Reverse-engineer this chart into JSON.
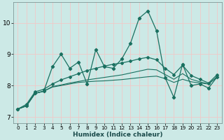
{
  "xlabel": "Humidex (Indice chaleur)",
  "xlim": [
    -0.5,
    23.5
  ],
  "ylim": [
    6.8,
    10.65
  ],
  "yticks": [
    7,
    8,
    9,
    10
  ],
  "xticks": [
    0,
    1,
    2,
    3,
    4,
    5,
    6,
    7,
    8,
    9,
    10,
    11,
    12,
    13,
    14,
    15,
    16,
    17,
    18,
    19,
    20,
    21,
    22,
    23
  ],
  "bg_color": "#cce9e6",
  "grid_color_minor": "#f0c8c8",
  "grid_color_major": "#b8d8d4",
  "line_color": "#1a7060",
  "series": [
    [
      7.25,
      7.35,
      7.75,
      7.82,
      8.6,
      9.0,
      8.55,
      8.75,
      8.05,
      9.15,
      8.6,
      8.55,
      8.85,
      9.35,
      10.15,
      10.38,
      9.75,
      8.25,
      7.62,
      8.68,
      8.0,
      8.05,
      7.92,
      8.28
    ],
    [
      7.25,
      7.35,
      7.75,
      7.82,
      7.95,
      8.0,
      8.05,
      8.1,
      8.12,
      8.14,
      8.15,
      8.17,
      8.19,
      8.22,
      8.25,
      8.28,
      8.3,
      8.22,
      8.1,
      8.2,
      8.12,
      8.08,
      8.05,
      8.28
    ],
    [
      7.25,
      7.35,
      7.75,
      7.82,
      7.97,
      8.02,
      8.08,
      8.13,
      8.18,
      8.22,
      8.26,
      8.3,
      8.34,
      8.4,
      8.46,
      8.52,
      8.5,
      8.35,
      8.2,
      8.38,
      8.2,
      8.12,
      8.05,
      8.28
    ],
    [
      7.25,
      7.4,
      7.8,
      7.88,
      8.05,
      8.18,
      8.28,
      8.38,
      8.48,
      8.55,
      8.62,
      8.68,
      8.72,
      8.78,
      8.85,
      8.9,
      8.82,
      8.55,
      8.35,
      8.65,
      8.32,
      8.2,
      8.08,
      8.35
    ]
  ],
  "marker_series": [
    0,
    3
  ],
  "no_marker_series": [
    1,
    2
  ]
}
